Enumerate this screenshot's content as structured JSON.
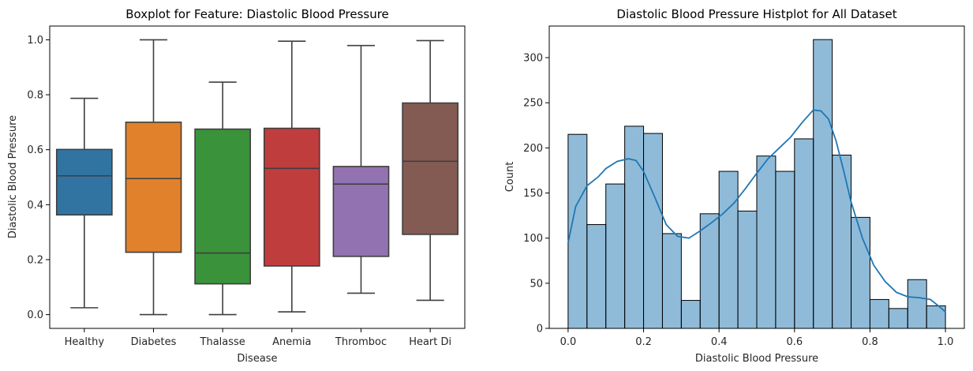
{
  "chart_data": [
    {
      "type": "box",
      "title": "Boxplot for Feature: Diastolic Blood Pressure",
      "xlabel": "Disease",
      "ylabel": "Diastolic Blood Pressure",
      "ylim": [
        -0.05,
        1.05
      ],
      "yticks": [
        0.0,
        0.2,
        0.4,
        0.6,
        0.8,
        1.0
      ],
      "ytick_labels": [
        "0.0",
        "0.2",
        "0.4",
        "0.6",
        "0.8",
        "1.0"
      ],
      "categories": [
        "Healthy",
        "Diabetes",
        "Thalasse",
        "Anemia",
        "Thromboc",
        "Heart Di"
      ],
      "boxes": [
        {
          "label": "Healthy",
          "whisker_low": 0.025,
          "q1": 0.363,
          "median": 0.505,
          "q3": 0.601,
          "whisker_high": 0.787,
          "color": "#3274a1"
        },
        {
          "label": "Diabetes",
          "whisker_low": 0.0,
          "q1": 0.227,
          "median": 0.495,
          "q3": 0.7,
          "whisker_high": 1.0,
          "color": "#e1812c"
        },
        {
          "label": "Thalasse",
          "whisker_low": 0.0,
          "q1": 0.112,
          "median": 0.224,
          "q3": 0.675,
          "whisker_high": 0.846,
          "color": "#3a923a"
        },
        {
          "label": "Anemia",
          "whisker_low": 0.01,
          "q1": 0.177,
          "median": 0.532,
          "q3": 0.678,
          "whisker_high": 0.995,
          "color": "#c03d3e"
        },
        {
          "label": "Thromboc",
          "whisker_low": 0.078,
          "q1": 0.212,
          "median": 0.475,
          "q3": 0.539,
          "whisker_high": 0.979,
          "color": "#9372b2"
        },
        {
          "label": "Heart Di",
          "whisker_low": 0.052,
          "q1": 0.292,
          "median": 0.558,
          "q3": 0.77,
          "whisker_high": 0.997,
          "color": "#845b53"
        }
      ]
    },
    {
      "type": "histogram",
      "title": "Diastolic Blood Pressure Histplot for All Dataset",
      "xlabel": "Diastolic Blood Pressure",
      "ylabel": "Count",
      "xlim": [
        -0.05,
        1.05
      ],
      "ylim": [
        0,
        335
      ],
      "xticks": [
        0.0,
        0.2,
        0.4,
        0.6,
        0.8,
        1.0
      ],
      "xtick_labels": [
        "0.0",
        "0.2",
        "0.4",
        "0.6",
        "0.8",
        "1.0"
      ],
      "yticks": [
        0,
        50,
        100,
        150,
        200,
        250,
        300
      ],
      "ytick_labels": [
        "0",
        "50",
        "100",
        "150",
        "200",
        "250",
        "300"
      ],
      "bin_edges": [
        0.0,
        0.05,
        0.1,
        0.15,
        0.2,
        0.25,
        0.3,
        0.35,
        0.4,
        0.45,
        0.5,
        0.55,
        0.6,
        0.65,
        0.7,
        0.75,
        0.8,
        0.85,
        0.9,
        0.95,
        1.0
      ],
      "counts": [
        215,
        115,
        160,
        224,
        216,
        105,
        31,
        127,
        174,
        130,
        191,
        174,
        210,
        320,
        192,
        123,
        32,
        22,
        54,
        25
      ],
      "kde": {
        "x": [
          0.0,
          0.02,
          0.05,
          0.08,
          0.1,
          0.13,
          0.16,
          0.18,
          0.2,
          0.23,
          0.26,
          0.29,
          0.32,
          0.35,
          0.38,
          0.41,
          0.44,
          0.47,
          0.5,
          0.53,
          0.56,
          0.59,
          0.62,
          0.65,
          0.67,
          0.69,
          0.71,
          0.73,
          0.75,
          0.78,
          0.81,
          0.84,
          0.87,
          0.9,
          0.93,
          0.96,
          0.99,
          1.0
        ],
        "y": [
          95,
          135,
          158,
          168,
          177,
          185,
          188,
          186,
          174,
          145,
          115,
          102,
          100,
          108,
          117,
          127,
          139,
          155,
          172,
          188,
          200,
          212,
          228,
          242,
          241,
          232,
          208,
          175,
          140,
          100,
          70,
          52,
          40,
          35,
          34,
          32,
          22,
          18
        ]
      },
      "color": "#1f77b4"
    }
  ]
}
